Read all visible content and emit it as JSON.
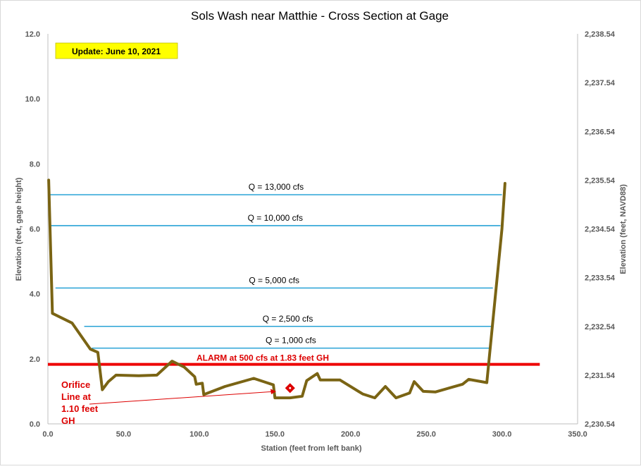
{
  "chart_data": {
    "type": "line",
    "title": "Sols Wash near Matthie - Cross Section at Gage",
    "xlabel": "Station (feet from left bank)",
    "ylabel": "Elevation (feet, gage height)",
    "y2label": "Elevation (feet, NAVD88)",
    "update_label": "Update: June 10, 2021",
    "xlim": [
      0,
      350
    ],
    "ylim": [
      0,
      12
    ],
    "xticks": [
      "0.0",
      "50.0",
      "100.0",
      "150.0",
      "200.0",
      "250.0",
      "300.0",
      "350.0"
    ],
    "yticks": [
      "0.0",
      "2.0",
      "4.0",
      "6.0",
      "8.0",
      "10.0",
      "12.0"
    ],
    "y2ticks": [
      "2,230.54",
      "2,231.54",
      "2,232.54",
      "2,233.54",
      "2,234.54",
      "2,235.54",
      "2,236.54",
      "2,237.54",
      "2,238.54"
    ],
    "colors": {
      "profile": "#7a6414",
      "discharge": "#29a3d6",
      "alarm": "#ee0000",
      "annotation": "#dd0000",
      "badge_fill": "#ffff00"
    },
    "cross_section": {
      "x": [
        0.5,
        3,
        16,
        28,
        33,
        36,
        40,
        45,
        60,
        72,
        82,
        90,
        97,
        98,
        102,
        103,
        117,
        136,
        149,
        150,
        160,
        168,
        171,
        178,
        180,
        193,
        208,
        216,
        223,
        230,
        239,
        242,
        248,
        256,
        274,
        278,
        290,
        300,
        302
      ],
      "y": [
        7.5,
        3.4,
        3.1,
        2.3,
        2.2,
        1.05,
        1.3,
        1.5,
        1.48,
        1.5,
        1.93,
        1.75,
        1.45,
        1.22,
        1.25,
        0.9,
        1.15,
        1.4,
        1.2,
        0.8,
        0.8,
        0.85,
        1.33,
        1.55,
        1.35,
        1.35,
        0.92,
        0.8,
        1.15,
        0.8,
        0.95,
        1.3,
        1.0,
        0.98,
        1.22,
        1.37,
        1.27,
        6.0,
        7.4
      ]
    },
    "discharge_lines": [
      {
        "label": "Q = 13,000  cfs",
        "y": 7.05,
        "x_start": 1.5,
        "x_end": 300
      },
      {
        "label": "Q = 10,000  cfs",
        "y": 6.1,
        "x_start": 1.5,
        "x_end": 299
      },
      {
        "label": "Q = 5,000  cfs",
        "y": 4.18,
        "x_start": 5,
        "x_end": 294
      },
      {
        "label": "Q = 2,500  cfs",
        "y": 3.0,
        "x_start": 24,
        "x_end": 293
      },
      {
        "label": "Q = 1,000  cfs",
        "y": 2.33,
        "x_start": 29,
        "x_end": 292
      }
    ],
    "alarm_line": {
      "label": "ALARM at 500  cfs at 1.83  feet GH",
      "y": 1.83,
      "x_start": 0,
      "x_end": 325
    },
    "orifice": {
      "x": 160,
      "y": 1.1,
      "label_lines": [
        "Orifice",
        "Line at",
        "1.10  feet",
        "GH"
      ]
    }
  }
}
